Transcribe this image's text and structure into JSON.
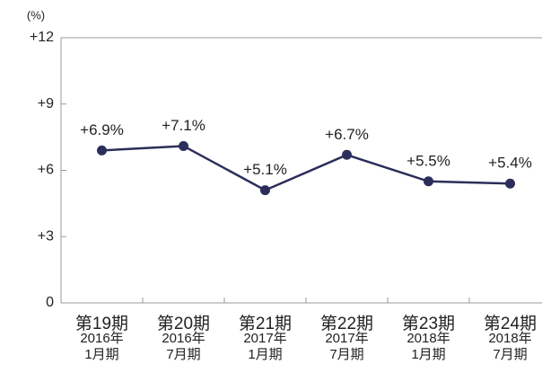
{
  "chart_data": {
    "type": "line",
    "y_label": "(%)",
    "categories": [
      [
        "第19期",
        "2016年",
        "1月期"
      ],
      [
        "第20期",
        "2016年",
        "7月期"
      ],
      [
        "第21期",
        "2017年",
        "1月期"
      ],
      [
        "第22期",
        "2017年",
        "7月期"
      ],
      [
        "第23期",
        "2018年",
        "1月期"
      ],
      [
        "第24期",
        "2018年",
        "7月期"
      ]
    ],
    "series": [
      {
        "color": "#2b2e5a",
        "values": [
          6.9,
          7.1,
          5.1,
          6.7,
          5.5,
          5.4
        ],
        "value_labels": [
          "+6.9%",
          "+7.1%",
          "+5.1%",
          "+6.7%",
          "+5.5%",
          "+5.4%"
        ]
      }
    ],
    "ylim": [
      0,
      12
    ],
    "yticks": [
      0,
      {
        "value": 3,
        "label": "+3"
      },
      {
        "value": 6,
        "label": "+6"
      },
      {
        "value": 9,
        "label": "+9"
      },
      {
        "value": 12,
        "label": "+12"
      }
    ],
    "grid": false
  }
}
